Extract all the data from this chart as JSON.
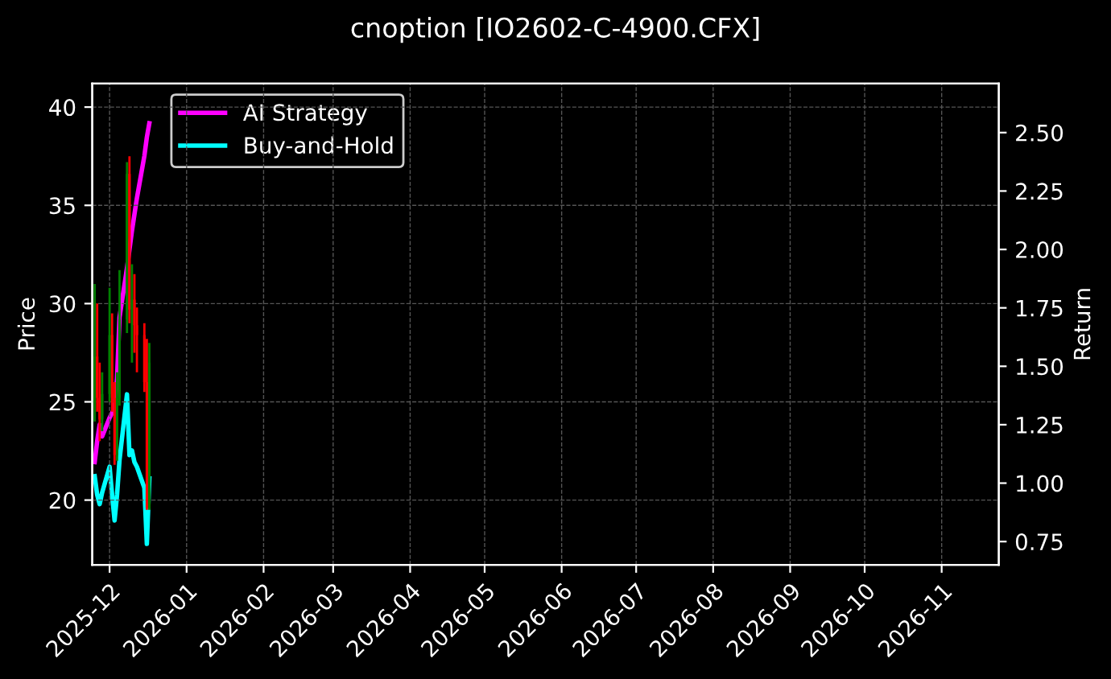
{
  "chart_data": {
    "type": "candlestick",
    "title": "cnoption [IO2602-C-4900.CFX]",
    "ylabel": "Price",
    "y2label": "Return",
    "x": [
      "2025-11-25",
      "2025-11-26",
      "2025-11-27",
      "2025-11-28",
      "2025-12-01",
      "2025-12-02",
      "2025-12-03",
      "2025-12-04",
      "2025-12-05",
      "2025-12-08",
      "2025-12-09",
      "2025-12-10",
      "2025-12-11",
      "2025-12-12",
      "2025-12-15",
      "2025-12-16",
      "2025-12-17"
    ],
    "ohlc": [
      [
        25.0,
        31.0,
        24.0,
        27.3
      ],
      [
        27.3,
        30.0,
        24.5,
        25.2
      ],
      [
        25.2,
        27.0,
        23.0,
        24.1
      ],
      [
        24.1,
        26.5,
        23.5,
        25.4
      ],
      [
        25.4,
        30.8,
        25.0,
        28.4
      ],
      [
        28.4,
        29.5,
        24.5,
        25.2
      ],
      [
        25.2,
        26.0,
        21.8,
        22.3
      ],
      [
        22.3,
        26.5,
        22.0,
        25.2
      ],
      [
        25.2,
        31.7,
        24.8,
        29.2
      ],
      [
        29.2,
        37.2,
        28.5,
        36.6
      ],
      [
        36.6,
        37.5,
        29.0,
        29.7
      ],
      [
        29.7,
        32.0,
        27.0,
        30.2
      ],
      [
        30.2,
        31.5,
        27.5,
        28.9
      ],
      [
        28.9,
        29.8,
        26.5,
        28.4
      ],
      [
        28.4,
        29.0,
        25.5,
        26.0
      ],
      [
        26.0,
        28.2,
        19.5,
        19.6
      ],
      [
        19.6,
        28.0,
        19.5,
        27.0
      ]
    ],
    "colors": [
      "#008000",
      "#ff0000",
      "#ff0000",
      "#008000",
      "#008000",
      "#ff0000",
      "#ff0000",
      "#008000",
      "#008000",
      "#008000",
      "#ff0000",
      "#008000",
      "#ff0000",
      "#ff0000",
      "#ff0000",
      "#ff0000",
      "#008000"
    ],
    "series": [
      {
        "name": "AI Strategy",
        "type": "line",
        "axis": "y2",
        "color": "#ff00ff",
        "values": [
          1.09,
          1.18,
          1.25,
          1.2,
          1.28,
          1.3,
          1.32,
          1.45,
          1.71,
          1.92,
          2.0,
          2.08,
          2.15,
          2.22,
          2.4,
          2.48,
          2.54
        ]
      },
      {
        "name": "Buy-and-Hold",
        "type": "line",
        "axis": "y2",
        "color": "#00ffff",
        "values": [
          1.03,
          0.95,
          0.91,
          0.96,
          1.07,
          0.95,
          0.84,
          0.95,
          1.1,
          1.38,
          1.12,
          1.14,
          1.09,
          1.07,
          0.98,
          0.74,
          1.02
        ]
      }
    ],
    "xlim": [
      "2025-11-24",
      "2026-11-24"
    ],
    "xticks": [
      {
        "value": "2025-12",
        "label": "2025-12"
      },
      {
        "value": "2026-01",
        "label": "2026-01"
      },
      {
        "value": "2026-02",
        "label": "2026-02"
      },
      {
        "value": "2026-03",
        "label": "2026-03"
      },
      {
        "value": "2026-04",
        "label": "2026-04"
      },
      {
        "value": "2026-05",
        "label": "2026-05"
      },
      {
        "value": "2026-06",
        "label": "2026-06"
      },
      {
        "value": "2026-07",
        "label": "2026-07"
      },
      {
        "value": "2026-08",
        "label": "2026-08"
      },
      {
        "value": "2026-09",
        "label": "2026-09"
      },
      {
        "value": "2026-10",
        "label": "2026-10"
      },
      {
        "value": "2026-11",
        "label": "2026-11"
      }
    ],
    "ylim": [
      16.7,
      41.2
    ],
    "yticks": [
      20,
      25,
      30,
      35,
      40
    ],
    "y2lim": [
      0.65,
      2.71
    ],
    "y2ticks": [
      {
        "value": 0.75,
        "label": "0.75"
      },
      {
        "value": 1.0,
        "label": "1.00"
      },
      {
        "value": 1.25,
        "label": "1.25"
      },
      {
        "value": 1.5,
        "label": "1.50"
      },
      {
        "value": 1.75,
        "label": "1.75"
      },
      {
        "value": 2.0,
        "label": "2.00"
      },
      {
        "value": 2.25,
        "label": "2.25"
      },
      {
        "value": 2.5,
        "label": "2.50"
      }
    ],
    "grid": true,
    "legend": "top left",
    "line_style": "solid",
    "marker": "none"
  }
}
